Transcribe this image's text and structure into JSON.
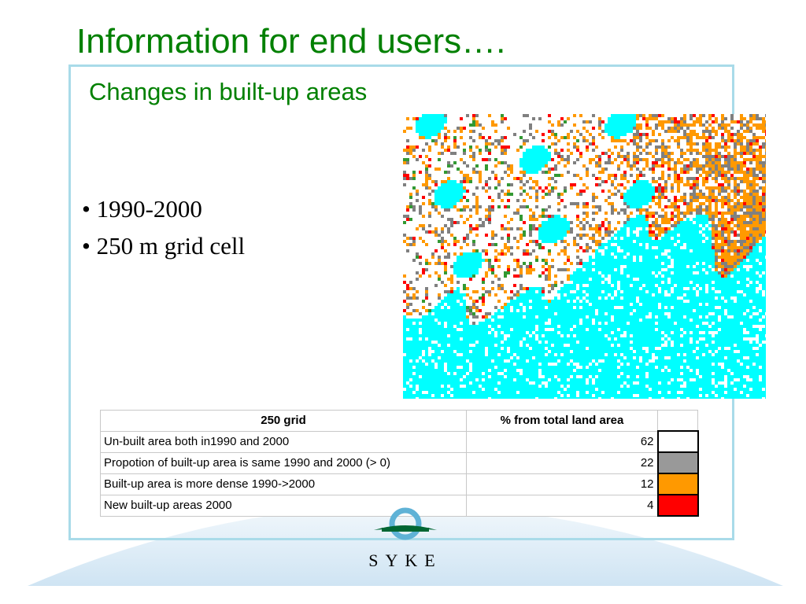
{
  "slide": {
    "title": "Information for end users….",
    "subtitle": "Changes in built-up areas",
    "bullets": [
      "• 1990-2000",
      "• 250 m grid cell"
    ]
  },
  "table": {
    "headers": [
      "250 grid",
      "% from total land area",
      ""
    ],
    "rows": [
      {
        "label": "Un-built area both in1990 and 2000",
        "value": "62",
        "color": "#ffffff"
      },
      {
        "label": "Propotion of built-up area is same 1990 and 2000 (> 0)",
        "value": "22",
        "color": "#999999"
      },
      {
        "label": "Built-up area is more dense 1990->2000",
        "value": "12",
        "color": "#ff9900"
      },
      {
        "label": "New built-up areas 2000",
        "value": "4",
        "color": "#ff0000"
      }
    ]
  },
  "map": {
    "colors": {
      "water": "#00ffff",
      "unbuilt": "#ffffff",
      "same": "#808080",
      "denser": "#ff9900",
      "new": "#ff0000",
      "green": "#339933"
    }
  },
  "logo": {
    "text": "SYKE",
    "colors": {
      "ring": "#5fb2d6",
      "band": "#006633"
    }
  }
}
